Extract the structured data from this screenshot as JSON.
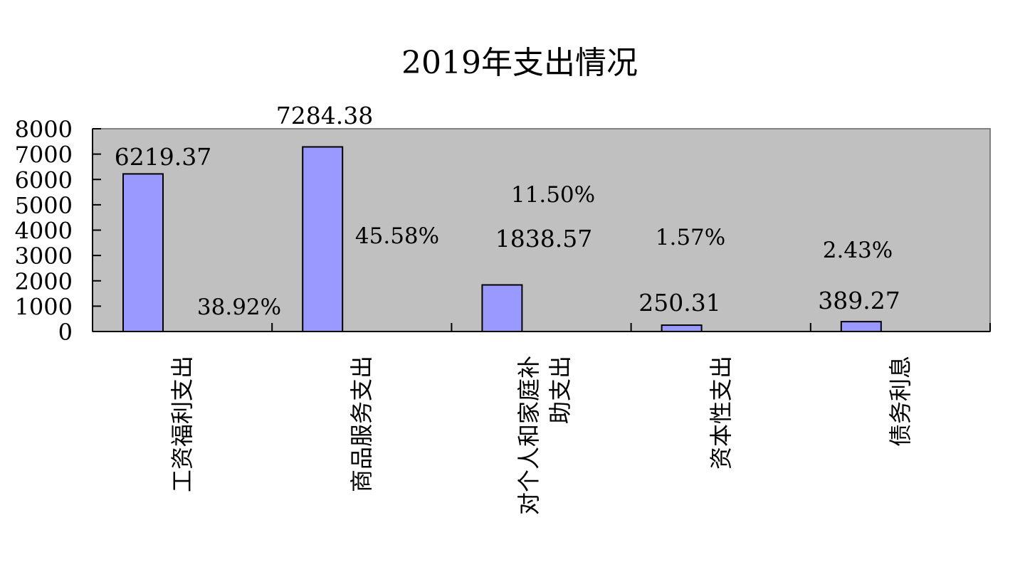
{
  "chart_data": {
    "type": "bar",
    "title": "2019年支出情况",
    "categories": [
      "工资福利支出",
      "商品服务支出",
      "对个人和家庭补\n助支出",
      "资本性支出",
      "债务利息"
    ],
    "series": [
      {
        "values": [
          6219.37,
          7284.38,
          1838.57,
          250.31,
          389.27
        ],
        "labels": [
          "6219.37",
          "7284.38",
          "1838.57",
          "250.31",
          "389.27"
        ],
        "color": "#9999FF"
      },
      {
        "values": [
          38.92,
          45.58,
          11.5,
          1.57,
          2.43
        ],
        "labels": [
          "38.92%",
          "45.58%",
          "11.50%",
          "1.57%",
          "2.43%"
        ],
        "color": "#993366"
      }
    ],
    "ylim": [
      0,
      8000
    ],
    "yticks": [
      0,
      1000,
      2000,
      3000,
      4000,
      5000,
      6000,
      7000,
      8000
    ],
    "plot_background": "#C0C0C0",
    "grid": false,
    "legend": "none"
  }
}
